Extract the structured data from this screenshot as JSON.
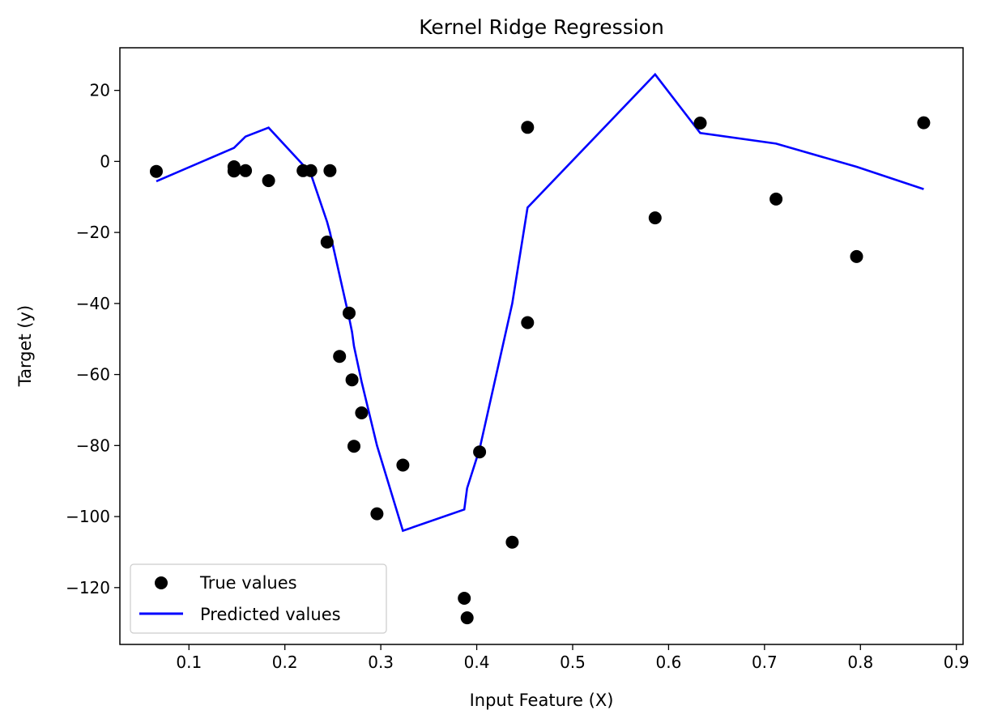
{
  "chart_data": {
    "type": "scatter+line",
    "title": "Kernel Ridge Regression",
    "xlabel": "Input Feature (X)",
    "ylabel": "Target (y)",
    "xlim": [
      0.028,
      0.907
    ],
    "ylim": [
      -136,
      32
    ],
    "xticks": [
      0.1,
      0.2,
      0.3,
      0.4,
      0.5,
      0.6,
      0.7,
      0.8,
      0.9
    ],
    "xtick_labels": [
      "0.1",
      "0.2",
      "0.3",
      "0.4",
      "0.5",
      "0.6",
      "0.7",
      "0.8",
      "0.9"
    ],
    "yticks": [
      20,
      0,
      -20,
      -40,
      -60,
      -80,
      -100,
      -120
    ],
    "ytick_labels": [
      "20",
      "0",
      "−20",
      "−40",
      "−60",
      "−80",
      "−100",
      "−120"
    ],
    "grid": false,
    "legend_position": "lower-left",
    "series": [
      {
        "name": "True values",
        "kind": "scatter",
        "color": "#000000",
        "x": [
          0.066,
          0.147,
          0.147,
          0.159,
          0.183,
          0.219,
          0.227,
          0.244,
          0.247,
          0.257,
          0.267,
          0.27,
          0.272,
          0.28,
          0.296,
          0.323,
          0.387,
          0.39,
          0.403,
          0.437,
          0.453,
          0.453,
          0.586,
          0.633,
          0.712,
          0.796,
          0.866
        ],
        "y": [
          -2.8,
          -1.5,
          -2.7,
          -2.6,
          -5.4,
          -2.6,
          -2.6,
          -22.7,
          -2.6,
          -54.9,
          -42.7,
          -61.5,
          -80.2,
          -70.8,
          -99.2,
          -85.5,
          -123.0,
          -128.5,
          -81.8,
          -107.2,
          -45.4,
          9.6,
          -15.9,
          10.8,
          -10.6,
          -26.8,
          10.9
        ]
      },
      {
        "name": "Predicted values",
        "kind": "line",
        "color": "#0000ff",
        "x": [
          0.066,
          0.147,
          0.147,
          0.159,
          0.183,
          0.219,
          0.227,
          0.244,
          0.247,
          0.257,
          0.267,
          0.27,
          0.272,
          0.28,
          0.296,
          0.323,
          0.387,
          0.39,
          0.403,
          0.437,
          0.453,
          0.453,
          0.586,
          0.633,
          0.712,
          0.796,
          0.866
        ],
        "y": [
          -5.6,
          3.8,
          3.8,
          7.0,
          9.5,
          -1.0,
          -3.5,
          -17.0,
          -20.0,
          -32.0,
          -44.0,
          -48.0,
          -52.0,
          -62.0,
          -80.0,
          -104.0,
          -98.0,
          -92.0,
          -81.0,
          -40.0,
          -13.0,
          -13.0,
          24.5,
          8.0,
          5.0,
          -1.5,
          -7.8
        ]
      }
    ]
  }
}
